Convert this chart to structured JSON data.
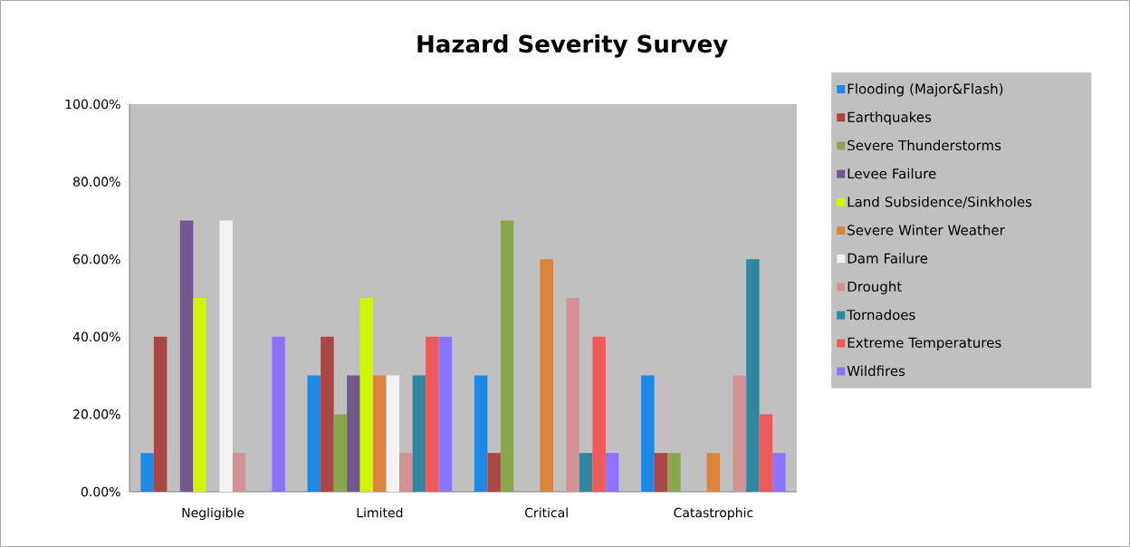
{
  "chart_data": {
    "type": "bar",
    "title": "Hazard Severity Survey",
    "categories": [
      "Negligible",
      "Limited",
      "Critical",
      "Catastrophic"
    ],
    "series": [
      {
        "name": "Flooding (Major&Flash)",
        "color": "#1e88e5",
        "values": [
          10,
          30,
          30,
          30
        ]
      },
      {
        "name": "Earthquakes",
        "color": "#aa4744",
        "values": [
          40,
          40,
          10,
          10
        ]
      },
      {
        "name": "Severe Thunderstorms",
        "color": "#8aa74e",
        "values": [
          0,
          20,
          70,
          10
        ]
      },
      {
        "name": "Levee Failure",
        "color": "#71588f",
        "values": [
          70,
          30,
          0,
          0
        ]
      },
      {
        "name": "Land Subsidence/Sinkholes",
        "color": "#d0f50a",
        "values": [
          50,
          50,
          0,
          0
        ]
      },
      {
        "name": "Severe Winter Weather",
        "color": "#db843d",
        "values": [
          0,
          30,
          60,
          10
        ]
      },
      {
        "name": "Dam Failure",
        "color": "#f2f2f2",
        "values": [
          70,
          30,
          0,
          0
        ]
      },
      {
        "name": "Drought",
        "color": "#d39392",
        "values": [
          10,
          10,
          50,
          30
        ]
      },
      {
        "name": "Tornadoes",
        "color": "#2f889f",
        "values": [
          0,
          30,
          10,
          60
        ]
      },
      {
        "name": "Extreme Temperatures",
        "color": "#ee5a5a",
        "values": [
          0,
          40,
          40,
          20
        ]
      },
      {
        "name": "Wildfires",
        "color": "#8d73fc",
        "values": [
          40,
          40,
          10,
          10
        ]
      }
    ],
    "ylim": [
      0,
      100
    ],
    "yticks": [
      {
        "value": 0,
        "label": "0.00%"
      },
      {
        "value": 20,
        "label": "20.00%"
      },
      {
        "value": 40,
        "label": "40.00%"
      },
      {
        "value": 60,
        "label": "60.00%"
      },
      {
        "value": 80,
        "label": "80.00%"
      },
      {
        "value": 100,
        "label": "100.00%"
      }
    ],
    "legend": "right"
  }
}
